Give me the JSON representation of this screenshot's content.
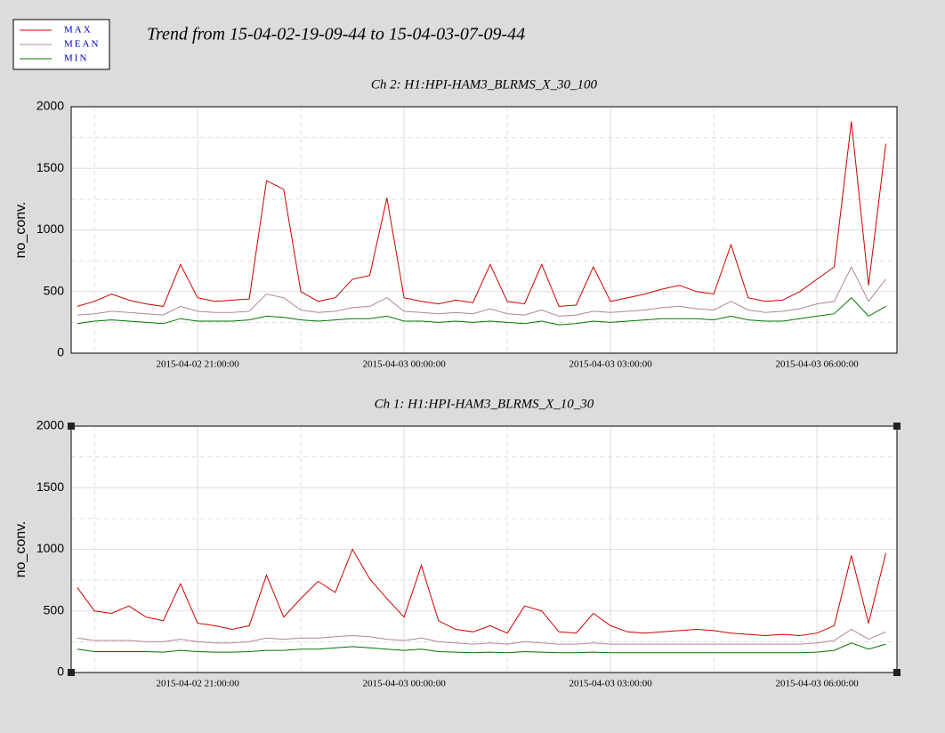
{
  "title": "Trend from 15-04-02-19-09-44 to 15-04-03-07-09-44",
  "chart_data": [
    {
      "type": "line",
      "title": "Ch 2: H1:HPI-HAM3_BLRMS_X_30_100",
      "ylabel": "no_conv.",
      "x": [
        "2015-04-02 19:15",
        "2015-04-02 19:30",
        "2015-04-02 19:45",
        "2015-04-02 20:00",
        "2015-04-02 20:15",
        "2015-04-02 20:30",
        "2015-04-02 20:45",
        "2015-04-02 21:00",
        "2015-04-02 21:15",
        "2015-04-02 21:30",
        "2015-04-02 21:45",
        "2015-04-02 22:00",
        "2015-04-02 22:15",
        "2015-04-02 22:30",
        "2015-04-02 22:45",
        "2015-04-02 23:00",
        "2015-04-02 23:15",
        "2015-04-02 23:30",
        "2015-04-02 23:45",
        "2015-04-03 00:00",
        "2015-04-03 00:15",
        "2015-04-03 00:30",
        "2015-04-03 00:45",
        "2015-04-03 01:00",
        "2015-04-03 01:15",
        "2015-04-03 01:30",
        "2015-04-03 01:45",
        "2015-04-03 02:00",
        "2015-04-03 02:15",
        "2015-04-03 02:30",
        "2015-04-03 02:45",
        "2015-04-03 03:00",
        "2015-04-03 03:15",
        "2015-04-03 03:30",
        "2015-04-03 03:45",
        "2015-04-03 04:00",
        "2015-04-03 04:15",
        "2015-04-03 04:30",
        "2015-04-03 04:45",
        "2015-04-03 05:00",
        "2015-04-03 05:15",
        "2015-04-03 05:30",
        "2015-04-03 05:45",
        "2015-04-03 06:00",
        "2015-04-03 06:15",
        "2015-04-03 06:30",
        "2015-04-03 06:45",
        "2015-04-03 07:00"
      ],
      "series": [
        {
          "name": "MAX",
          "color": "#cc0000",
          "values": [
            380,
            420,
            480,
            430,
            400,
            380,
            720,
            450,
            420,
            430,
            440,
            1400,
            1330,
            500,
            420,
            450,
            600,
            630,
            1260,
            450,
            420,
            400,
            430,
            410,
            720,
            420,
            400,
            720,
            380,
            390,
            700,
            420,
            450,
            480,
            520,
            550,
            500,
            480,
            880,
            450,
            420,
            430,
            500,
            600,
            700,
            1880,
            550,
            1700
          ]
        },
        {
          "name": "MEAN",
          "color": "#b08888",
          "values": [
            310,
            320,
            340,
            330,
            320,
            310,
            380,
            340,
            330,
            330,
            340,
            480,
            450,
            350,
            330,
            340,
            370,
            380,
            450,
            340,
            330,
            320,
            330,
            320,
            360,
            320,
            310,
            350,
            300,
            310,
            340,
            330,
            340,
            350,
            370,
            380,
            360,
            350,
            420,
            350,
            330,
            340,
            360,
            400,
            420,
            700,
            420,
            600
          ]
        },
        {
          "name": "MIN",
          "color": "#007700",
          "values": [
            240,
            260,
            270,
            260,
            250,
            240,
            280,
            260,
            260,
            260,
            270,
            300,
            290,
            270,
            260,
            270,
            280,
            280,
            300,
            260,
            260,
            250,
            260,
            250,
            260,
            250,
            240,
            260,
            230,
            240,
            260,
            250,
            260,
            270,
            280,
            280,
            280,
            270,
            300,
            270,
            260,
            260,
            280,
            300,
            320,
            450,
            300,
            380
          ]
        }
      ],
      "xlim": [
        "2015-04-02 19:09:44",
        "2015-04-03 07:09:44"
      ],
      "xticks": [
        "2015-04-02 21:00:00",
        "2015-04-03 00:00:00",
        "2015-04-03 03:00:00",
        "2015-04-03 06:00:00"
      ],
      "xgrid": [
        "2015-04-02 19:30:00",
        "2015-04-02 22:30:00",
        "2015-04-03 01:30:00",
        "2015-04-03 04:30:00"
      ],
      "ylim": [
        0,
        2000
      ],
      "yticks": [
        0,
        500,
        1000,
        1500,
        2000
      ],
      "ygrid": [
        250,
        750,
        1250,
        1750
      ]
    },
    {
      "type": "line",
      "title": "Ch 1: H1:HPI-HAM3_BLRMS_X_10_30",
      "ylabel": "no_conv.",
      "x": [
        "2015-04-02 19:15",
        "2015-04-02 19:30",
        "2015-04-02 19:45",
        "2015-04-02 20:00",
        "2015-04-02 20:15",
        "2015-04-02 20:30",
        "2015-04-02 20:45",
        "2015-04-02 21:00",
        "2015-04-02 21:15",
        "2015-04-02 21:30",
        "2015-04-02 21:45",
        "2015-04-02 22:00",
        "2015-04-02 22:15",
        "2015-04-02 22:30",
        "2015-04-02 22:45",
        "2015-04-02 23:00",
        "2015-04-02 23:15",
        "2015-04-02 23:30",
        "2015-04-02 23:45",
        "2015-04-03 00:00",
        "2015-04-03 00:15",
        "2015-04-03 00:30",
        "2015-04-03 00:45",
        "2015-04-03 01:00",
        "2015-04-03 01:15",
        "2015-04-03 01:30",
        "2015-04-03 01:45",
        "2015-04-03 02:00",
        "2015-04-03 02:15",
        "2015-04-03 02:30",
        "2015-04-03 02:45",
        "2015-04-03 03:00",
        "2015-04-03 03:15",
        "2015-04-03 03:30",
        "2015-04-03 03:45",
        "2015-04-03 04:00",
        "2015-04-03 04:15",
        "2015-04-03 04:30",
        "2015-04-03 04:45",
        "2015-04-03 05:00",
        "2015-04-03 05:15",
        "2015-04-03 05:30",
        "2015-04-03 05:45",
        "2015-04-03 06:00",
        "2015-04-03 06:15",
        "2015-04-03 06:30",
        "2015-04-03 06:45",
        "2015-04-03 07:00"
      ],
      "series": [
        {
          "name": "MAX",
          "color": "#cc0000",
          "values": [
            690,
            500,
            480,
            540,
            450,
            420,
            720,
            400,
            380,
            350,
            380,
            790,
            450,
            600,
            740,
            650,
            1000,
            760,
            600,
            450,
            870,
            420,
            350,
            330,
            380,
            320,
            540,
            500,
            330,
            320,
            480,
            380,
            330,
            320,
            330,
            340,
            350,
            340,
            320,
            310,
            300,
            310,
            300,
            320,
            380,
            950,
            400,
            970
          ]
        },
        {
          "name": "MEAN",
          "color": "#b08888",
          "values": [
            280,
            260,
            260,
            260,
            250,
            250,
            270,
            250,
            240,
            240,
            250,
            280,
            270,
            280,
            280,
            290,
            300,
            290,
            270,
            260,
            280,
            250,
            240,
            230,
            240,
            230,
            250,
            240,
            230,
            230,
            240,
            230,
            230,
            230,
            230,
            230,
            230,
            230,
            230,
            230,
            230,
            230,
            230,
            240,
            260,
            350,
            270,
            330
          ]
        },
        {
          "name": "MIN",
          "color": "#007700",
          "values": [
            190,
            170,
            170,
            170,
            170,
            165,
            180,
            170,
            165,
            165,
            170,
            180,
            180,
            190,
            190,
            200,
            210,
            200,
            190,
            180,
            190,
            170,
            165,
            160,
            165,
            160,
            170,
            165,
            160,
            160,
            165,
            160,
            160,
            160,
            160,
            160,
            160,
            160,
            160,
            160,
            160,
            160,
            160,
            165,
            180,
            240,
            190,
            230
          ]
        }
      ],
      "xlim": [
        "2015-04-02 19:09:44",
        "2015-04-03 07:09:44"
      ],
      "xticks": [
        "2015-04-02 21:00:00",
        "2015-04-03 00:00:00",
        "2015-04-03 03:00:00",
        "2015-04-03 06:00:00"
      ],
      "xgrid": [
        "2015-04-02 19:30:00",
        "2015-04-02 22:30:00",
        "2015-04-03 01:30:00",
        "2015-04-03 04:30:00"
      ],
      "ylim": [
        0,
        2000
      ],
      "yticks": [
        0,
        500,
        1000,
        1500,
        2000
      ],
      "ygrid": [
        250,
        750,
        1250,
        1750
      ]
    }
  ]
}
